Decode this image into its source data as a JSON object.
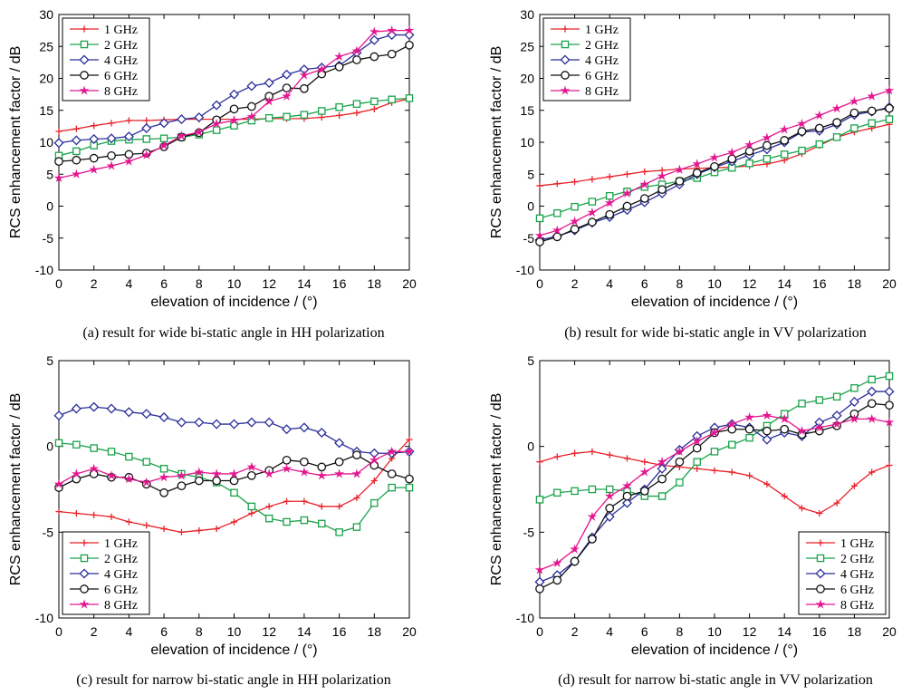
{
  "colors": {
    "1 GHz": "#e8232a",
    "2 GHz": "#1aa34a",
    "4 GHz": "#2b2f9a",
    "6 GHz": "#111111",
    "8 GHz": "#e3168f"
  },
  "chart_data": [
    {
      "type": "line",
      "caption": "(a) result for wide bi-static angle in HH polarization",
      "xlabel": "elevation of incidence / (°)",
      "ylabel": "RCS enhancement factor / dB",
      "xlim": [
        0,
        20
      ],
      "ylim": [
        -10,
        30
      ],
      "xticks": [
        0,
        2,
        4,
        6,
        8,
        10,
        12,
        14,
        16,
        18,
        20
      ],
      "yticks": [
        -10,
        -5,
        0,
        5,
        10,
        15,
        20,
        25,
        30
      ],
      "legend_position": "top-left",
      "x": [
        0,
        1,
        2,
        3,
        4,
        5,
        6,
        7,
        8,
        9,
        10,
        11,
        12,
        13,
        14,
        15,
        16,
        17,
        18,
        19,
        20
      ],
      "series": [
        {
          "name": "1 GHz",
          "marker": "plus",
          "values": [
            11.7,
            12.1,
            12.6,
            13.0,
            13.4,
            13.4,
            13.5,
            13.6,
            13.6,
            13.6,
            13.6,
            13.6,
            13.7,
            13.7,
            13.7,
            13.9,
            14.2,
            14.6,
            15.2,
            16.2,
            16.8
          ]
        },
        {
          "name": "2 GHz",
          "marker": "square",
          "values": [
            7.9,
            8.6,
            9.5,
            10.2,
            10.4,
            10.5,
            10.6,
            10.8,
            11.2,
            11.9,
            12.6,
            13.4,
            13.8,
            14.0,
            14.3,
            14.9,
            15.5,
            16.0,
            16.4,
            16.7,
            16.9
          ]
        },
        {
          "name": "4 GHz",
          "marker": "diamond",
          "values": [
            9.9,
            10.3,
            10.5,
            10.6,
            10.9,
            12.2,
            13.0,
            13.6,
            13.9,
            15.8,
            17.5,
            18.8,
            19.3,
            20.6,
            21.4,
            21.7,
            22.0,
            24.0,
            26.0,
            26.8,
            26.8
          ]
        },
        {
          "name": "6 GHz",
          "marker": "circle",
          "values": [
            7.0,
            7.2,
            7.5,
            7.9,
            8.1,
            8.3,
            9.3,
            10.8,
            11.5,
            13.5,
            15.2,
            15.6,
            17.2,
            18.5,
            18.4,
            20.7,
            21.8,
            22.9,
            23.4,
            23.8,
            25.2
          ]
        },
        {
          "name": "8 GHz",
          "marker": "star",
          "values": [
            4.4,
            5.0,
            5.7,
            6.3,
            7.0,
            8.0,
            9.5,
            11.0,
            11.6,
            12.9,
            13.4,
            14.0,
            16.4,
            17.2,
            20.5,
            21.4,
            23.4,
            24.3,
            27.3,
            27.5,
            27.5
          ]
        }
      ]
    },
    {
      "type": "line",
      "caption": "(b) result for wide bi-static angle in VV polarization",
      "xlabel": "elevation of incidence / (°)",
      "ylabel": "RCS enhancement factor / dB",
      "xlim": [
        0,
        20
      ],
      "ylim": [
        -10,
        30
      ],
      "xticks": [
        0,
        2,
        4,
        6,
        8,
        10,
        12,
        14,
        16,
        18,
        20
      ],
      "yticks": [
        -10,
        -5,
        0,
        5,
        10,
        15,
        20,
        25,
        30
      ],
      "legend_position": "top-left",
      "x": [
        0,
        1,
        2,
        3,
        4,
        5,
        6,
        7,
        8,
        9,
        10,
        11,
        12,
        13,
        14,
        15,
        16,
        17,
        18,
        19,
        20
      ],
      "series": [
        {
          "name": "1 GHz",
          "marker": "plus",
          "values": [
            3.2,
            3.5,
            3.8,
            4.2,
            4.6,
            5.0,
            5.4,
            5.6,
            5.8,
            5.9,
            6.0,
            6.1,
            6.3,
            6.6,
            7.2,
            8.2,
            9.5,
            10.8,
            11.6,
            12.2,
            12.8
          ]
        },
        {
          "name": "2 GHz",
          "marker": "square",
          "values": [
            -1.9,
            -1.1,
            -0.1,
            0.7,
            1.6,
            2.3,
            3.0,
            3.4,
            3.9,
            4.4,
            5.3,
            6.0,
            6.7,
            7.4,
            8.1,
            8.7,
            9.7,
            10.8,
            12.2,
            13.0,
            13.6
          ]
        },
        {
          "name": "4 GHz",
          "marker": "diamond",
          "values": [
            -5.3,
            -4.7,
            -3.8,
            -2.6,
            -1.7,
            -0.6,
            0.6,
            2.0,
            3.4,
            5.0,
            6.1,
            7.0,
            8.0,
            8.9,
            10.0,
            11.6,
            11.8,
            12.8,
            14.3,
            14.8,
            15.5
          ]
        },
        {
          "name": "6 GHz",
          "marker": "circle",
          "values": [
            -5.6,
            -4.8,
            -3.6,
            -2.5,
            -1.3,
            0.0,
            1.2,
            2.6,
            3.9,
            5.2,
            6.2,
            7.4,
            8.6,
            9.5,
            10.3,
            11.7,
            12.2,
            13.1,
            14.6,
            14.9,
            15.3
          ]
        },
        {
          "name": "8 GHz",
          "marker": "star",
          "values": [
            -4.6,
            -3.8,
            -2.4,
            -1.0,
            0.5,
            2.0,
            3.4,
            4.7,
            5.7,
            6.6,
            7.6,
            8.4,
            9.6,
            10.7,
            12.0,
            12.9,
            14.2,
            15.3,
            16.4,
            17.2,
            18.1
          ]
        }
      ]
    },
    {
      "type": "line",
      "caption": "(c) result for narrow bi-static angle in HH polarization",
      "xlabel": "elevation of incidence / (°)",
      "ylabel": "RCS enhancement factor / dB",
      "xlim": [
        0,
        20
      ],
      "ylim": [
        -10,
        5
      ],
      "xticks": [
        0,
        2,
        4,
        6,
        8,
        10,
        12,
        14,
        16,
        18,
        20
      ],
      "yticks": [
        -10,
        -5,
        0,
        5
      ],
      "legend_position": "bottom-left",
      "x": [
        0,
        1,
        2,
        3,
        4,
        5,
        6,
        7,
        8,
        9,
        10,
        11,
        12,
        13,
        14,
        15,
        16,
        17,
        18,
        19,
        20
      ],
      "series": [
        {
          "name": "1 GHz",
          "marker": "plus",
          "values": [
            -3.8,
            -3.9,
            -4.0,
            -4.1,
            -4.4,
            -4.6,
            -4.8,
            -5.0,
            -4.9,
            -4.8,
            -4.4,
            -3.9,
            -3.5,
            -3.2,
            -3.2,
            -3.5,
            -3.5,
            -3.0,
            -2.0,
            -0.7,
            0.4
          ]
        },
        {
          "name": "2 GHz",
          "marker": "square",
          "values": [
            0.2,
            0.1,
            -0.1,
            -0.3,
            -0.6,
            -0.9,
            -1.3,
            -1.6,
            -1.8,
            -2.1,
            -2.7,
            -3.5,
            -4.2,
            -4.4,
            -4.3,
            -4.5,
            -5.0,
            -4.7,
            -3.3,
            -2.4,
            -2.4
          ]
        },
        {
          "name": "4 GHz",
          "marker": "diamond",
          "values": [
            1.8,
            2.2,
            2.3,
            2.2,
            2.0,
            1.9,
            1.7,
            1.4,
            1.4,
            1.3,
            1.3,
            1.4,
            1.4,
            1.0,
            1.1,
            0.8,
            0.2,
            -0.3,
            -0.4,
            -0.4,
            -0.3
          ]
        },
        {
          "name": "6 GHz",
          "marker": "circle",
          "values": [
            -2.4,
            -1.9,
            -1.6,
            -1.8,
            -1.8,
            -2.2,
            -2.7,
            -2.3,
            -2.0,
            -2.0,
            -2.0,
            -1.7,
            -1.4,
            -0.8,
            -0.9,
            -1.2,
            -0.9,
            -0.5,
            -1.1,
            -1.6,
            -1.9
          ]
        },
        {
          "name": "8 GHz",
          "marker": "star",
          "values": [
            -2.2,
            -1.6,
            -1.3,
            -1.7,
            -1.9,
            -2.1,
            -1.8,
            -1.7,
            -1.5,
            -1.6,
            -1.6,
            -1.2,
            -1.6,
            -1.3,
            -1.5,
            -1.7,
            -1.6,
            -1.6,
            -0.8,
            -0.3,
            -0.3
          ]
        }
      ]
    },
    {
      "type": "line",
      "caption": "(d) result for narrow bi-static angle in VV polarization",
      "xlabel": "elevation of incidence / (°)",
      "ylabel": "RCS enhancement factor / dB",
      "xlim": [
        0,
        20
      ],
      "ylim": [
        -10,
        5
      ],
      "xticks": [
        0,
        2,
        4,
        6,
        8,
        10,
        12,
        14,
        16,
        18,
        20
      ],
      "yticks": [
        -10,
        -5,
        0,
        5
      ],
      "legend_position": "bottom-right",
      "x": [
        0,
        1,
        2,
        3,
        4,
        5,
        6,
        7,
        8,
        9,
        10,
        11,
        12,
        13,
        14,
        15,
        16,
        17,
        18,
        19,
        20
      ],
      "series": [
        {
          "name": "1 GHz",
          "marker": "plus",
          "values": [
            -0.9,
            -0.6,
            -0.4,
            -0.3,
            -0.5,
            -0.7,
            -0.9,
            -1.1,
            -1.2,
            -1.3,
            -1.4,
            -1.5,
            -1.7,
            -2.2,
            -2.9,
            -3.6,
            -3.9,
            -3.3,
            -2.3,
            -1.5,
            -1.1
          ]
        },
        {
          "name": "2 GHz",
          "marker": "square",
          "values": [
            -3.1,
            -2.7,
            -2.6,
            -2.5,
            -2.5,
            -2.6,
            -2.9,
            -2.9,
            -2.1,
            -0.9,
            -0.3,
            0.1,
            0.5,
            1.2,
            1.9,
            2.5,
            2.7,
            2.9,
            3.4,
            3.9,
            4.1
          ]
        },
        {
          "name": "4 GHz",
          "marker": "diamond",
          "values": [
            -7.9,
            -7.5,
            -6.7,
            -5.3,
            -4.1,
            -3.3,
            -2.5,
            -1.3,
            -0.2,
            0.6,
            1.1,
            1.3,
            1.1,
            0.4,
            0.8,
            0.6,
            1.4,
            1.8,
            2.6,
            3.2,
            3.2
          ]
        },
        {
          "name": "6 GHz",
          "marker": "circle",
          "values": [
            -8.3,
            -7.8,
            -6.7,
            -5.4,
            -3.6,
            -2.9,
            -2.6,
            -1.9,
            -0.9,
            -0.1,
            0.8,
            1.0,
            1.0,
            0.9,
            1.0,
            0.7,
            0.9,
            1.2,
            1.9,
            2.5,
            2.4
          ]
        },
        {
          "name": "8 GHz",
          "marker": "star",
          "values": [
            -7.2,
            -6.8,
            -6.0,
            -4.1,
            -2.9,
            -2.3,
            -1.5,
            -0.9,
            -0.3,
            0.3,
            0.8,
            1.3,
            1.7,
            1.8,
            1.6,
            0.9,
            1.1,
            1.3,
            1.6,
            1.6,
            1.4
          ]
        }
      ]
    }
  ]
}
